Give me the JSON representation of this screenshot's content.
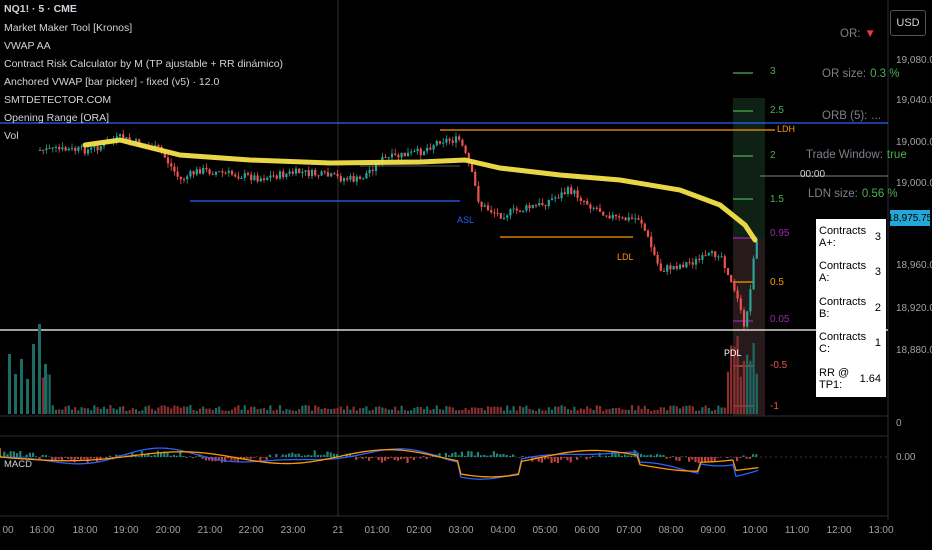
{
  "symbol_title": "NQ1! · 5 · CME",
  "indicators": [
    "Market Maker Tool [Kronos]",
    "VWAP AA",
    "Contract Risk Calculator by M (TP ajustable + RR dinámico)",
    "Anchored VWAP [bar picker] - fixed (v5) · 12.0",
    "SMTDETECTOR.COM",
    "Opening Range [ORA]",
    "Vol"
  ],
  "macd_label": "MACD",
  "currency_button": "USD",
  "price_axis": [
    "19,080.00",
    "19,040.00",
    "19,000.00",
    "18,960.00",
    "18,920.00",
    "18,880.00"
  ],
  "current_price": "18,975.75",
  "macd_axis": [
    "0",
    "0.00"
  ],
  "time_axis": [
    "00",
    "16:00",
    "18:00",
    "19:00",
    "20:00",
    "21:00",
    "22:00",
    "23:00",
    "21",
    "01:00",
    "02:00",
    "03:00",
    "04:00",
    "05:00",
    "06:00",
    "07:00",
    "08:00",
    "09:00",
    "10:00",
    "11:00",
    "12:00",
    "13:00"
  ],
  "fib_levels": [
    "3",
    "2.5",
    "2",
    "1.5",
    "1",
    "0.95",
    "0.5",
    "0.05",
    "-0.5",
    "-1"
  ],
  "chart_labels": {
    "ldh": "LDH",
    "asl": "ASL",
    "ldl": "LDL",
    "pdl": "PDL",
    "time_marker": "00:00"
  },
  "stats": [
    {
      "key": "OR:",
      "value": "▼",
      "color": "#f23645"
    },
    {
      "key": "OR size:",
      "value": "0.3 %",
      "color": "#4caf50"
    },
    {
      "key": "ORB (5):",
      "value": "...",
      "color": "#7d808a"
    },
    {
      "key": "Trade Window:",
      "value": "true",
      "color": "#4caf50"
    },
    {
      "key": "LDN size:",
      "value": "0.56 %",
      "color": "#4caf50"
    }
  ],
  "contracts": [
    {
      "label": "Contracts A+:",
      "value": "3"
    },
    {
      "label": "Contracts A:",
      "value": "3"
    },
    {
      "label": "Contracts B:",
      "value": "2"
    },
    {
      "label": "Contracts C:",
      "value": "1"
    },
    {
      "label": "RR @ TP1:",
      "value": "1.64"
    }
  ],
  "colors": {
    "up": "#26a69a",
    "down": "#ef5350",
    "vwap": "#f5e24a",
    "blue_line": "#2962ff",
    "orange_line": "#ff9800",
    "white_line": "#ffffff"
  }
}
